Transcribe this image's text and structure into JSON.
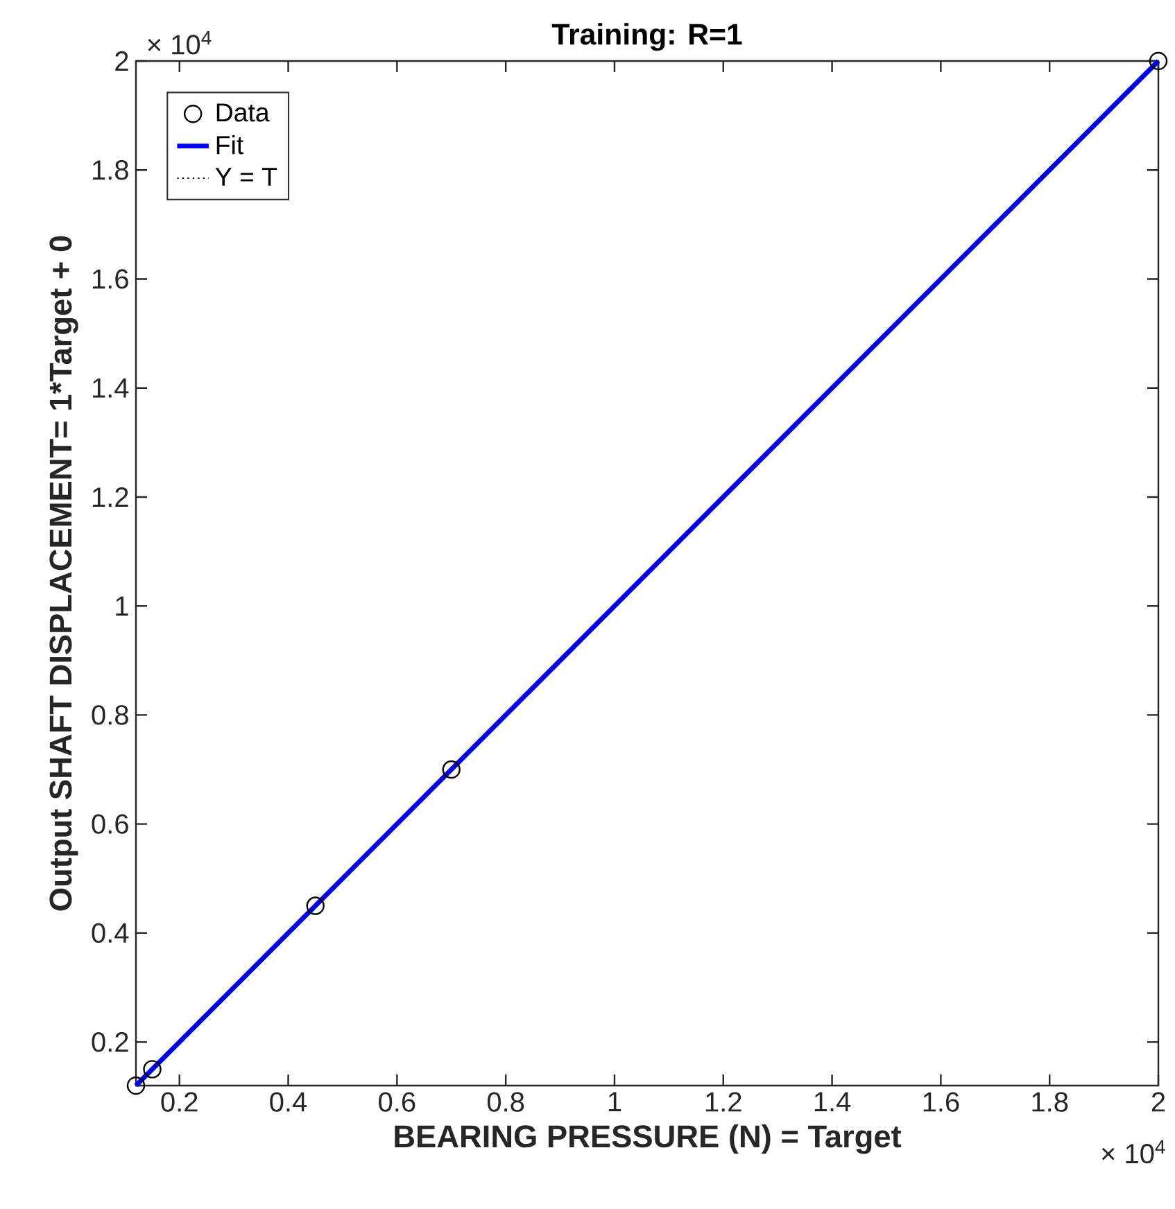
{
  "chart_data": {
    "type": "line",
    "title": "Training: R=1",
    "xlabel": "BEARING PRESSURE (N) = Target",
    "ylabel": "Output SHAFT DISPLACEMENT= 1*Target + 0",
    "annotations": [
      "× 10$^{4}$",
      "× 10$^{4}$"
    ],
    "series": [
      {
        "name": "Data",
        "type": "scatter",
        "marker": "circle",
        "color": "#000000",
        "x": [
          0.12,
          0.15,
          0.45,
          0.7,
          2
        ],
        "values": [
          0.12,
          0.15,
          0.45,
          0.7,
          2
        ]
      },
      {
        "name": "Fit",
        "line_style": "solid",
        "color": "#0000ff",
        "x": [
          0.12,
          2
        ],
        "values": [
          0.12,
          2
        ]
      },
      {
        "name": "Y = T",
        "line_style": "dotted",
        "color": "#000000",
        "x": [
          0.12,
          2
        ],
        "values": [
          0.12,
          2
        ]
      }
    ],
    "xlim": [
      0.12,
      2
    ],
    "ylim": [
      0.12,
      2
    ],
    "xticks": [
      0.2,
      0.4,
      0.6,
      0.8,
      1,
      1.2,
      1.4,
      1.6,
      1.8,
      2
    ],
    "yticks": [
      0.2,
      0.4,
      0.6,
      0.8,
      1,
      1.2,
      1.4,
      1.6,
      1.8,
      2
    ],
    "grid": false,
    "legend": "top left"
  }
}
